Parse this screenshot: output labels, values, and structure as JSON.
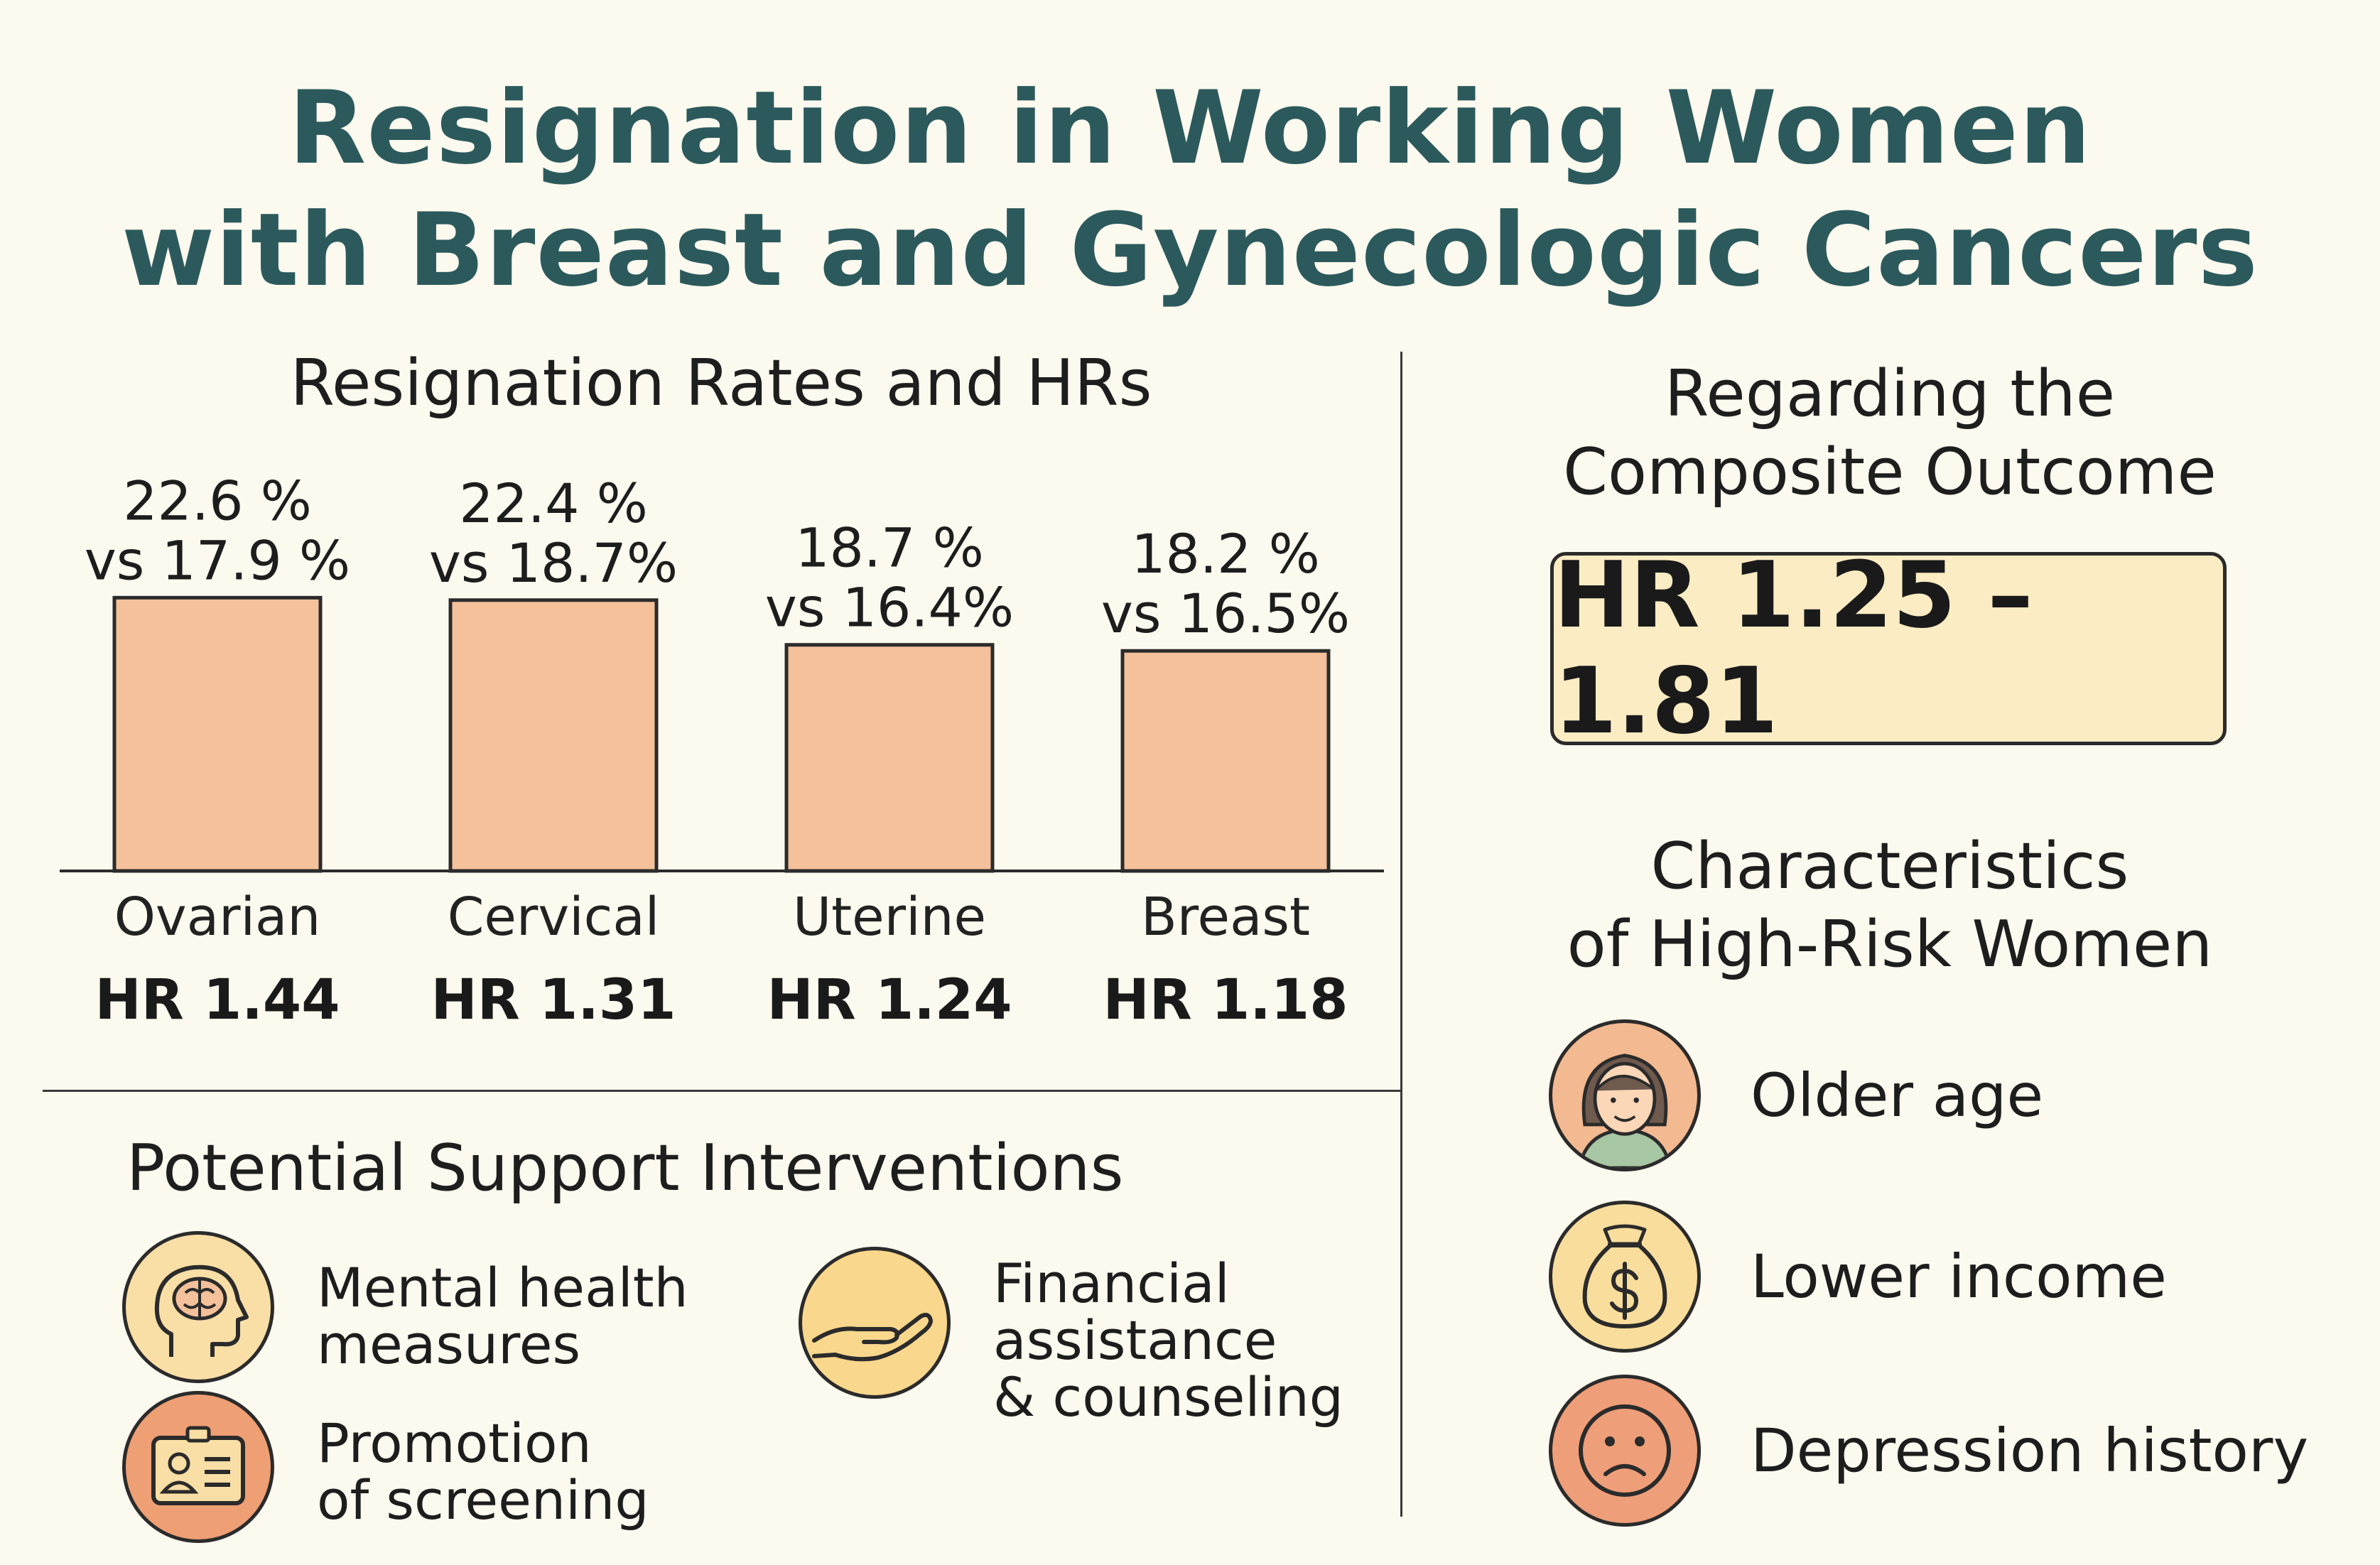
{
  "title": {
    "line1": "Resignation in Working Women",
    "line2": "with Breast and Gynecologic Cancers"
  },
  "colors": {
    "title": "#2c5a5c",
    "bar": "#f4c19a",
    "background": "#fcf9ef",
    "hr_box": "#fbecc3"
  },
  "chart_data": {
    "type": "bar",
    "title": "Resignation Rates and HRs",
    "categories": [
      "Ovarian",
      "Cervical",
      "Uterine",
      "Breast"
    ],
    "values": [
      22.6,
      22.4,
      18.7,
      18.2
    ],
    "comparison_values": [
      17.9,
      18.7,
      16.4,
      16.5
    ],
    "unit": "%",
    "value_labels": [
      {
        "line1": "22.6 %",
        "line2": "vs 17.9 %"
      },
      {
        "line1": "22.4 %",
        "line2": "vs 18.7%"
      },
      {
        "line1": "18.7 %",
        "line2": "vs 16.4%"
      },
      {
        "line1": "18.2 %",
        "line2": "vs 16.5%"
      }
    ],
    "hazard_ratios": [
      1.44,
      1.31,
      1.24,
      1.18
    ],
    "hr_labels": [
      "HR 1.44",
      "HR 1.31",
      "HR 1.24",
      "HR 1.18"
    ],
    "xlabel": "",
    "ylabel": "",
    "grid": false
  },
  "composite": {
    "title_line1": "Regarding the",
    "title_line2": "Composite Outcome",
    "hr_range": "HR 1.25 –1.81"
  },
  "high_risk": {
    "title_line1": "Characteristics",
    "title_line2": "of High-Risk Women",
    "items": [
      {
        "label": "Older age",
        "icon": "woman-face-icon"
      },
      {
        "label": "Lower income",
        "icon": "money-bag-icon"
      },
      {
        "label": "Depression history",
        "icon": "sad-face-icon"
      }
    ]
  },
  "interventions": {
    "title": "Potential Support Interventions",
    "items": [
      {
        "line1": "Mental health",
        "line2": "measures",
        "icon": "brain-head-icon"
      },
      {
        "line1": "Promotion",
        "line2": "of screening",
        "icon": "id-card-icon"
      },
      {
        "line1": "Financial",
        "line2": "assistance",
        "line3": "& counseling",
        "icon": "open-hand-icon"
      }
    ]
  }
}
